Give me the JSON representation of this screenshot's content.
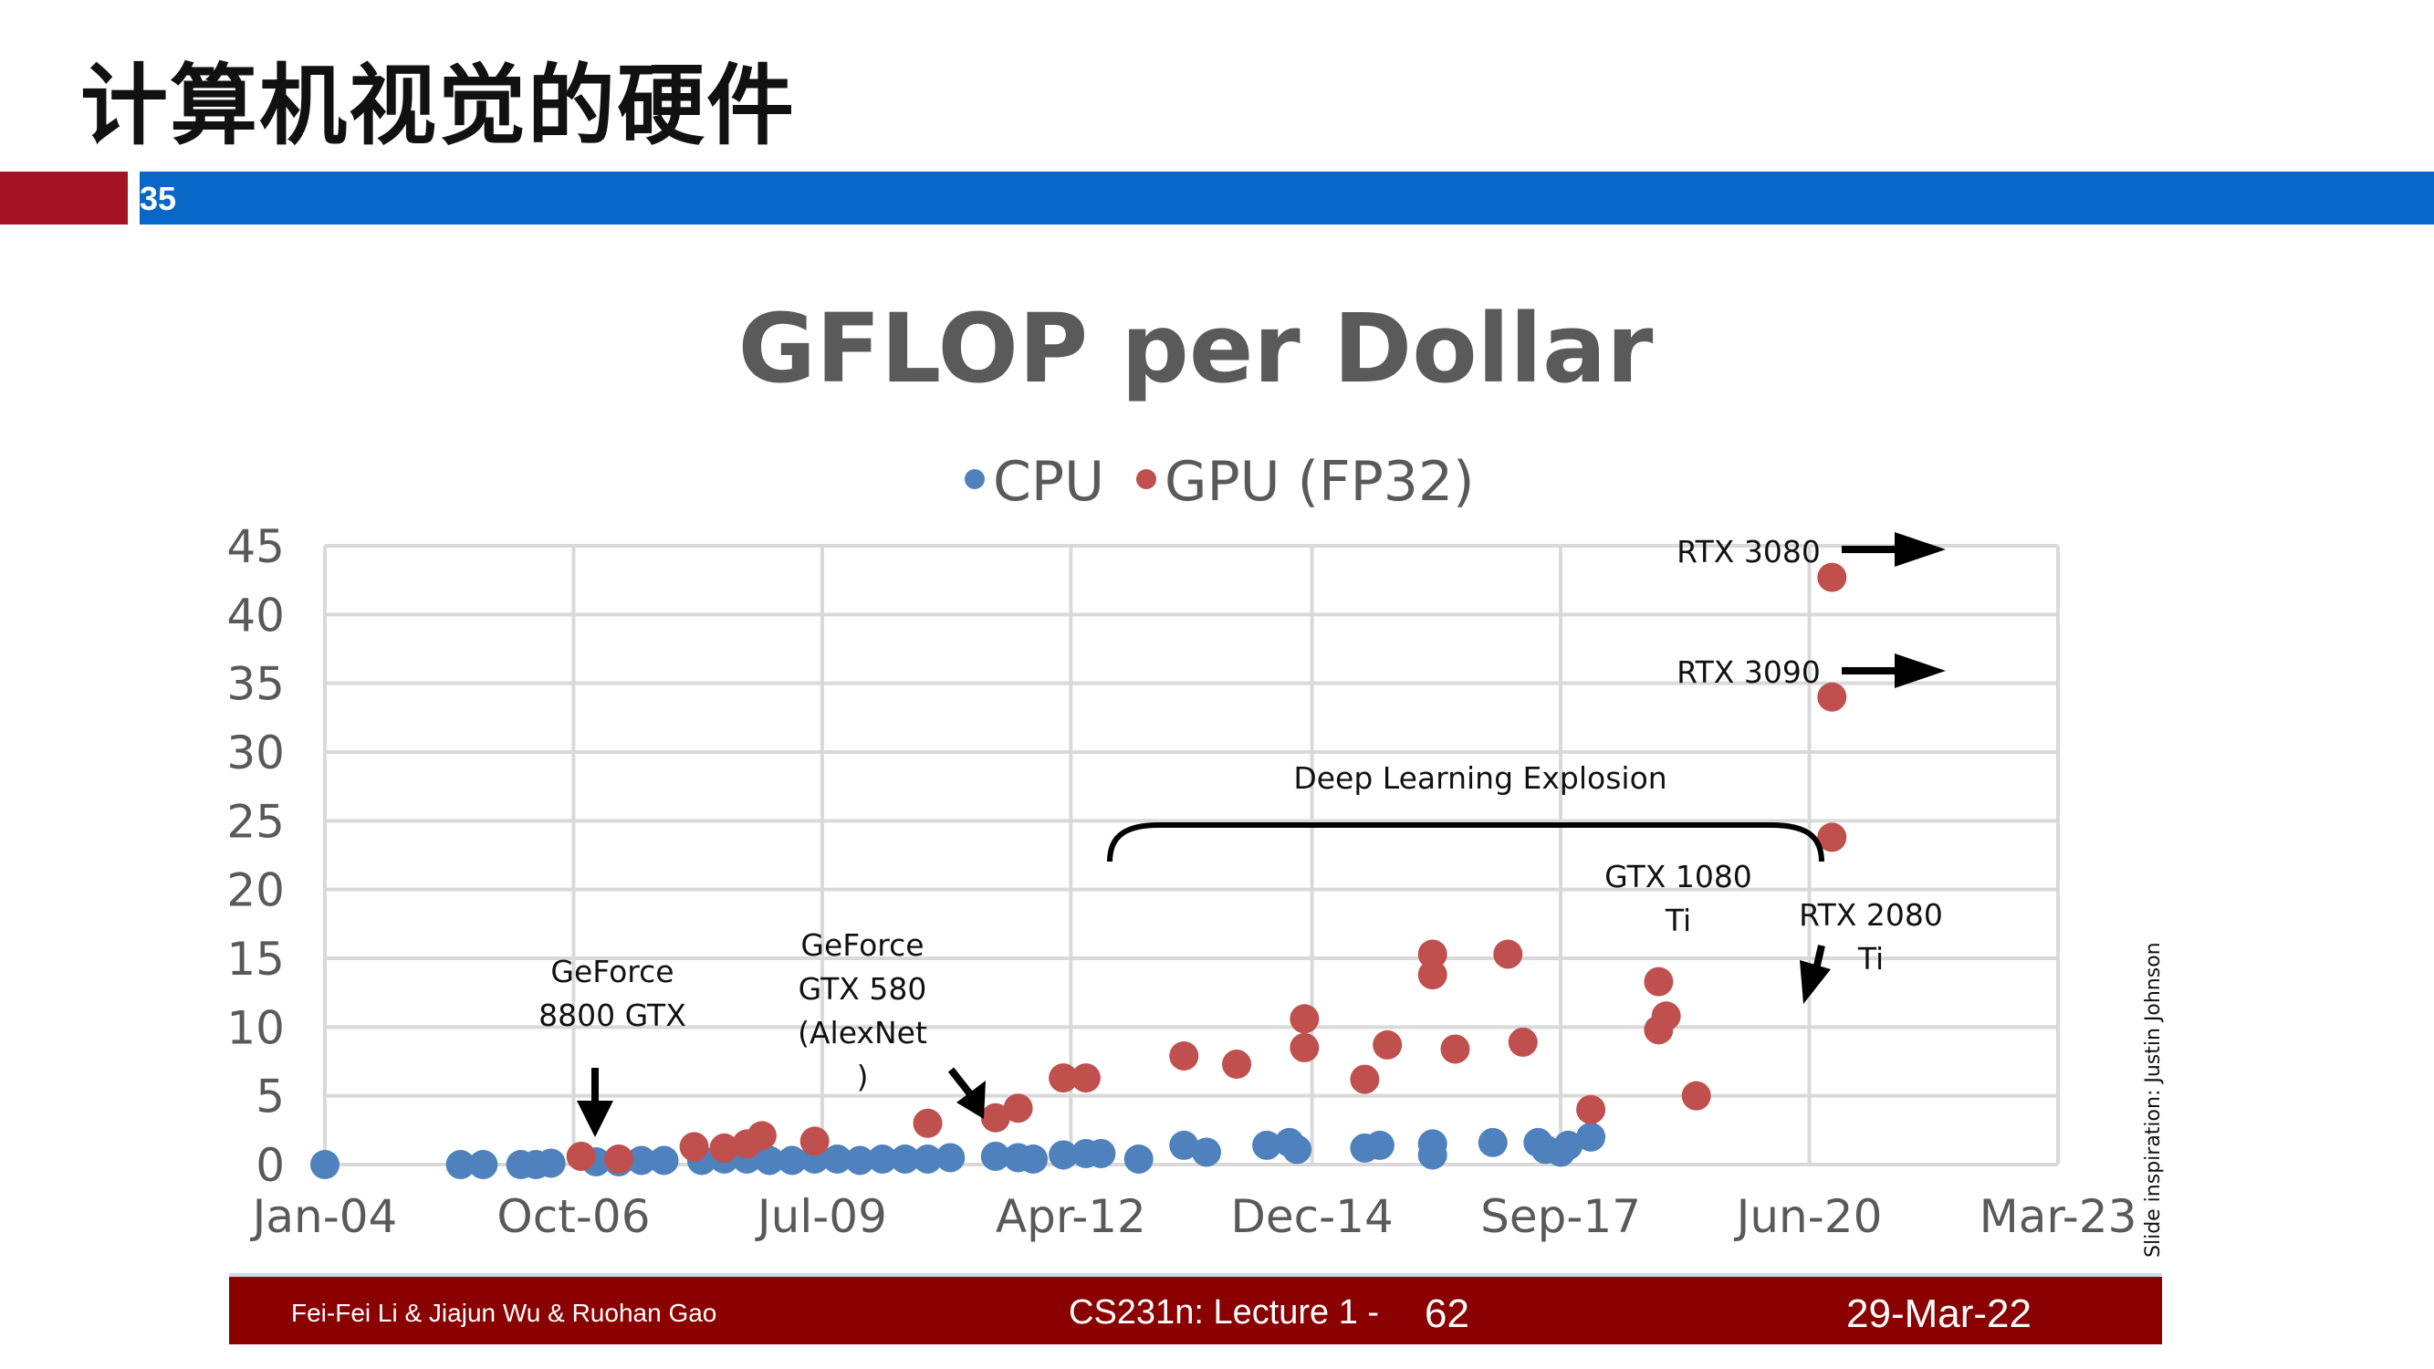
{
  "slide": {
    "title": "计算机视觉的硬件",
    "number": "35"
  },
  "footer": {
    "authors": "Fei-Fei Li & Jiajun Wu & Ruohan Gao",
    "course": "CS231n: Lecture 1 -",
    "page": "62",
    "date": "29-Mar-22"
  },
  "credit": "Slide inspiration: Justin Johnson",
  "colors": {
    "cpu": "#4f81bd",
    "gpu": "#c0504d",
    "grid": "#d9d9d9",
    "header_blue": "#0767c6",
    "header_red": "#a31323",
    "footer": "#8b0000"
  },
  "chart_data": {
    "type": "scatter",
    "title": "GFLOP per Dollar",
    "xlabel": "",
    "ylabel": "",
    "x_ticks": [
      "Jan-04",
      "Oct-06",
      "Jul-09",
      "Apr-12",
      "Dec-14",
      "Sep-17",
      "Jun-20",
      "Mar-23"
    ],
    "x_range": [
      "Jan-04",
      "Mar-23"
    ],
    "ylim": [
      0,
      45
    ],
    "y_ticks": [
      0,
      5,
      10,
      15,
      20,
      25,
      30,
      35,
      40,
      45
    ],
    "grid": true,
    "legend_position": "top",
    "series": [
      {
        "name": "CPU",
        "points": [
          [
            "Jan-04",
            0
          ],
          [
            "Jul-05",
            0
          ],
          [
            "Oct-05",
            0
          ],
          [
            "Mar-06",
            0
          ],
          [
            "May-06",
            0
          ],
          [
            "Jul-06",
            0.1
          ],
          [
            "Jan-07",
            0.2
          ],
          [
            "Apr-07",
            0.2
          ],
          [
            "Jul-07",
            0.3
          ],
          [
            "Oct-07",
            0.3
          ],
          [
            "Mar-08",
            0.3
          ],
          [
            "Jun-08",
            0.4
          ],
          [
            "Sep-08",
            0.4
          ],
          [
            "Dec-08",
            0.3
          ],
          [
            "Mar-09",
            0.3
          ],
          [
            "Jun-09",
            0.4
          ],
          [
            "Sep-09",
            0.4
          ],
          [
            "Dec-09",
            0.3
          ],
          [
            "Mar-10",
            0.4
          ],
          [
            "Jun-10",
            0.4
          ],
          [
            "Sep-10",
            0.4
          ],
          [
            "Dec-10",
            0.5
          ],
          [
            "Jun-11",
            0.6
          ],
          [
            "Sep-11",
            0.5
          ],
          [
            "Nov-11",
            0.4
          ],
          [
            "Mar-12",
            0.7
          ],
          [
            "Jun-12",
            0.8
          ],
          [
            "Aug-12",
            0.8
          ],
          [
            "Jan-13",
            0.4
          ],
          [
            "Jul-13",
            1.4
          ],
          [
            "Oct-13",
            0.9
          ],
          [
            "Jun-14",
            1.4
          ],
          [
            "Sep-14",
            1.6
          ],
          [
            "Oct-14",
            1.1
          ],
          [
            "Jul-15",
            1.2
          ],
          [
            "Sep-15",
            1.4
          ],
          [
            "Apr-16",
            1.5
          ],
          [
            "Apr-16",
            0.7
          ],
          [
            "Dec-16",
            1.6
          ],
          [
            "Jun-17",
            1.6
          ],
          [
            "Jul-17",
            1.1
          ],
          [
            "Sep-17",
            0.9
          ],
          [
            "Oct-17",
            1.4
          ],
          [
            "Jan-18",
            2.0
          ]
        ]
      },
      {
        "name": "GPU (FP32)",
        "points": [
          [
            "Nov-06",
            0.6
          ],
          [
            "Apr-07",
            0.4
          ],
          [
            "Feb-08",
            1.3
          ],
          [
            "Jun-08",
            1.2
          ],
          [
            "Sep-08",
            1.5
          ],
          [
            "Nov-08",
            2.1
          ],
          [
            "Jun-09",
            1.7
          ],
          [
            "Sep-10",
            3.0
          ],
          [
            "Jun-11",
            3.4
          ],
          [
            "Sep-11",
            4.1
          ],
          [
            "Mar-12",
            6.3
          ],
          [
            "Jun-12",
            6.3
          ],
          [
            "Jul-13",
            7.9
          ],
          [
            "Feb-14",
            7.3
          ],
          [
            "Nov-14",
            10.6
          ],
          [
            "Nov-14",
            8.5
          ],
          [
            "Jul-15",
            6.2
          ],
          [
            "Oct-15",
            8.7
          ],
          [
            "Apr-16",
            13.8
          ],
          [
            "Apr-16",
            15.3
          ],
          [
            "Jul-16",
            8.4
          ],
          [
            "Feb-17",
            15.3
          ],
          [
            "Apr-17",
            8.9
          ],
          [
            "Jan-18",
            4.0
          ],
          [
            "Oct-18",
            13.3
          ],
          [
            "Oct-18",
            9.8
          ],
          [
            "Nov-18",
            10.8
          ],
          [
            "Mar-19",
            5.0
          ],
          [
            "Sep-20",
            23.8
          ],
          [
            "Sep-20",
            34.0
          ],
          [
            "Sep-20",
            42.7
          ]
        ]
      }
    ],
    "annotations": [
      {
        "lines": [
          "GeForce",
          "8800 GTX"
        ]
      },
      {
        "lines": [
          "GeForce",
          "GTX 580",
          "(AlexNet",
          ")"
        ]
      },
      {
        "lines": [
          "Deep Learning Explosion"
        ]
      },
      {
        "lines": [
          "GTX 1080",
          "Ti"
        ]
      },
      {
        "lines": [
          "RTX 2080",
          "Ti"
        ]
      },
      {
        "lines": [
          "RTX 3090"
        ]
      },
      {
        "lines": [
          "RTX 3080"
        ]
      }
    ]
  }
}
